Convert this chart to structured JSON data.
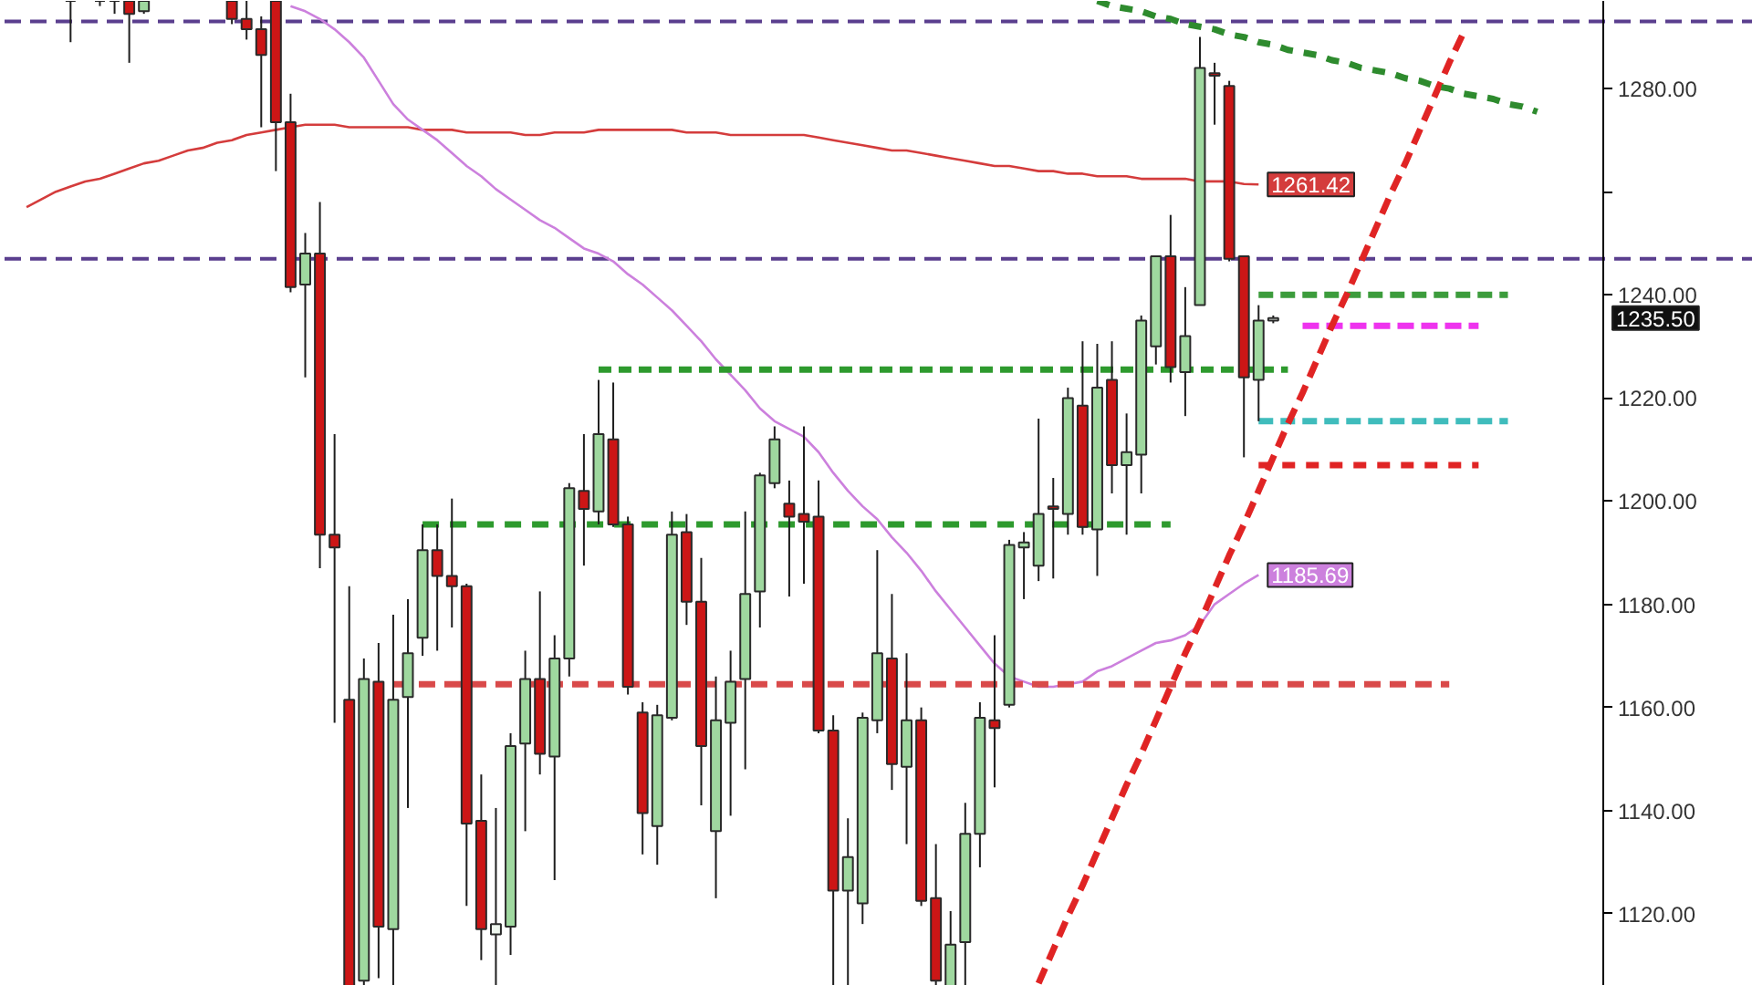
{
  "chart_data": {
    "type": "candlestick",
    "categories": [
      null,
      null,
      null,
      null,
      null,
      null,
      null,
      null,
      null,
      null,
      null,
      null,
      null,
      null,
      null,
      null,
      null,
      null,
      null,
      null,
      null,
      null,
      null,
      null,
      null,
      null,
      null,
      null,
      null,
      null,
      null,
      null,
      null,
      null,
      null,
      null,
      null,
      null,
      null,
      null,
      null,
      null,
      null,
      null,
      null,
      null,
      null,
      null,
      null,
      null,
      null,
      null,
      null,
      null,
      null,
      null,
      null,
      null,
      null,
      null,
      null,
      null,
      null,
      null,
      null,
      null,
      null,
      null,
      null,
      null,
      null,
      null,
      null,
      null,
      null,
      null,
      null,
      null,
      null,
      null,
      null,
      null,
      null,
      null,
      null,
      null,
      null,
      null,
      null,
      null,
      null,
      null,
      null,
      null,
      null,
      null,
      null,
      null,
      null,
      null,
      null,
      null,
      null,
      null,
      null,
      null,
      null,
      null,
      null
    ],
    "ohlc": [
      null,
      null,
      null,
      null,
      [
        1297,
        1297,
        1289,
        1297
      ],
      null,
      [
        1297,
        1297,
        1296,
        1297
      ],
      [
        1297,
        1297,
        1294.5,
        1297
      ],
      [
        1297,
        1297,
        1285,
        1294.5
      ],
      [
        1295,
        1297,
        1294.5,
        1297
      ],
      null,
      null,
      null,
      null,
      null,
      [
        1297,
        1297,
        1292.5,
        1293.5
      ],
      [
        1293.5,
        1297,
        1289.5,
        1291.5
      ],
      [
        1291.5,
        1294,
        1272.5,
        1286.5
      ],
      [
        1297,
        1297,
        1264,
        1273.5
      ],
      [
        1273.5,
        1279,
        1240.5,
        1241.5
      ],
      [
        1242,
        1252,
        1224,
        1248
      ],
      [
        1248,
        1258,
        1187,
        1193.5
      ],
      [
        1193.5,
        1213,
        1157,
        1191
      ],
      [
        1161.5,
        1183.5,
        1106,
        1106
      ],
      [
        1107,
        1169.5,
        1106,
        1165.5
      ],
      [
        1165,
        1172.5,
        1107.5,
        1117.5
      ],
      [
        1117,
        1178,
        1106,
        1161.5
      ],
      [
        1162,
        1181,
        1140.5,
        1170.5
      ],
      [
        1173.5,
        1195.5,
        1170,
        1190.5
      ],
      [
        1190.5,
        1195.5,
        1171,
        1185.5
      ],
      [
        1185.5,
        1200.5,
        1175.5,
        1183.5
      ],
      [
        1183.5,
        1184,
        1121.5,
        1137.5
      ],
      [
        1138,
        1147,
        1111,
        1117
      ],
      [
        1116,
        1140.5,
        1106,
        1118
      ],
      [
        1117.5,
        1155,
        1112,
        1152.5
      ],
      [
        1153,
        1171,
        1136,
        1165.5
      ],
      [
        1165.5,
        1182.5,
        1147,
        1151
      ],
      [
        1150.5,
        1174,
        1126.5,
        1169.5
      ],
      [
        1169.5,
        1203.5,
        1166,
        1202.5
      ],
      [
        1202,
        1213,
        1187.5,
        1198.5
      ],
      [
        1198,
        1223.5,
        1195.5,
        1213
      ],
      [
        1212,
        1223,
        1195,
        1195.5
      ],
      [
        1195.5,
        1197,
        1162.5,
        1164
      ],
      [
        1159,
        1161,
        1131.5,
        1139.5
      ],
      [
        1137,
        1160.5,
        1129.5,
        1158.5
      ],
      [
        1158,
        1198,
        1157.5,
        1193.5
      ],
      [
        1194,
        1197.5,
        1176,
        1180.5
      ],
      [
        1180.5,
        1189,
        1141,
        1152.5
      ],
      [
        1136,
        1166,
        1123,
        1157.5
      ],
      [
        1157,
        1171,
        1139,
        1165
      ],
      [
        1165.5,
        1198,
        1148,
        1182
      ],
      [
        1182.5,
        1205.5,
        1175.5,
        1205
      ],
      [
        1203.5,
        1214.5,
        1202.5,
        1212
      ],
      [
        1199.5,
        1204,
        1181.5,
        1197
      ],
      [
        1197.5,
        1214.5,
        1184,
        1196
      ],
      [
        1197,
        1204,
        1155,
        1155.5
      ],
      [
        1155.5,
        1158.5,
        1106,
        1124.5
      ],
      [
        1124.5,
        1138.5,
        1106,
        1131
      ],
      [
        1122,
        1159,
        1118,
        1158
      ],
      [
        1157.5,
        1190.5,
        1155,
        1170.5
      ],
      [
        1169.5,
        1182,
        1144,
        1149
      ],
      [
        1148.5,
        1170.5,
        1133.5,
        1157.5
      ],
      [
        1157.5,
        1160,
        1121.5,
        1122.5
      ],
      [
        1123,
        1133.5,
        1106,
        1107
      ],
      [
        1106,
        1120.5,
        1106,
        1114
      ],
      [
        1114.5,
        1141.5,
        1106,
        1135.5
      ],
      [
        1135.5,
        1161,
        1129,
        1158
      ],
      [
        1157.5,
        1174,
        1144.5,
        1156
      ],
      [
        1160.5,
        1192.5,
        1160,
        1191.5
      ],
      [
        1191,
        1194,
        1181,
        1192
      ],
      [
        1187.5,
        1216,
        1184.5,
        1197.5
      ],
      [
        1199,
        1204.5,
        1185,
        1198.5
      ],
      [
        1197.5,
        1222,
        1193.5,
        1220
      ],
      [
        1218.5,
        1231,
        1193.5,
        1195
      ],
      [
        1194.5,
        1230.5,
        1185.5,
        1222
      ],
      [
        1223.5,
        1231,
        1201.5,
        1207
      ],
      [
        1207,
        1217,
        1193.5,
        1209.5
      ],
      [
        1209,
        1236,
        1201.5,
        1235
      ],
      [
        1230,
        1247.5,
        1226.5,
        1247.5
      ],
      [
        1247.5,
        1255.5,
        1223,
        1226
      ],
      [
        1225,
        1241.5,
        1216.5,
        1232
      ],
      [
        1238,
        1290,
        1238,
        1284
      ],
      [
        1283,
        1285,
        1273,
        1282.5
      ],
      [
        1280.5,
        1281.5,
        1246.5,
        1247
      ],
      [
        1247.5,
        1247.5,
        1208.5,
        1224
      ],
      [
        1223.5,
        1238,
        1215.5,
        1235
      ],
      [
        1235,
        1236,
        1234.5,
        1235.5
      ],
      null,
      null,
      null,
      null,
      null,
      null,
      null,
      null,
      null,
      null,
      null,
      null,
      null,
      null,
      null,
      null,
      null,
      null,
      null,
      null,
      null,
      null
    ],
    "colors": [
      null,
      null,
      null,
      null,
      "#2a2a2a",
      null,
      "#2a2a2a",
      "#2a2a2a",
      "#cc1616",
      "#9fd89f",
      null,
      null,
      null,
      null,
      null,
      "#cc1616",
      "#cc1616",
      "#cc1616",
      "#cc1616",
      "#cc1616",
      "#9fd89f",
      "#cc1616",
      "#cc1616",
      "#cc1616",
      "#9fd89f",
      "#cc1616",
      "#9fd89f",
      "#9fd89f",
      "#9fd89f",
      "#cc1616",
      "#cc1616",
      "#cc1616",
      "#cc1616",
      "#eef7ee",
      "#9fd89f",
      "#9fd89f",
      "#cc1616",
      "#9fd89f",
      "#9fd89f",
      "#cc1616",
      "#9fd89f",
      "#cc1616",
      "#cc1616",
      "#cc1616",
      "#9fd89f",
      "#9fd89f",
      "#cc1616",
      "#cc1616",
      "#9fd89f",
      "#9fd89f",
      "#9fd89f",
      "#9fd89f",
      "#9fd89f",
      "#cc1616",
      "#cc1616",
      "#cc1616",
      "#cc1616",
      "#9fd89f",
      "#9fd89f",
      "#9fd89f",
      "#cc1616",
      "#9fd89f",
      "#cc1616",
      "#cc1616",
      "#9fd89f",
      "#9fd89f",
      "#9fd89f",
      "#cc1616",
      "#9fd89f",
      "#9fd89f",
      "#9fd89f",
      "#cc1616",
      "#9fd89f",
      "#cc1616",
      "#9fd89f",
      "#cc1616",
      "#9fd89f",
      "#9fd89f",
      "#9fd89f",
      "#cc1616",
      "#9fd89f",
      "#9fd89f",
      "#cc1616",
      "#cc1616",
      "#cc1616",
      "#9fd89f",
      "#eef7ee",
      null,
      null,
      null,
      null,
      null,
      null,
      null,
      null,
      null,
      null,
      null,
      null,
      null,
      null,
      null,
      null,
      null,
      null,
      null,
      null,
      null,
      null
    ],
    "ylim": [
      1106,
      1297
    ],
    "yticks": [
      {
        "value": 1120,
        "label": "1120.00"
      },
      {
        "value": 1140,
        "label": "1140.00"
      },
      {
        "value": 1160,
        "label": "1160.00"
      },
      {
        "value": 1180,
        "label": "1180.00"
      },
      {
        "value": 1200,
        "label": "1200.00"
      },
      {
        "value": 1220,
        "label": "1220.00"
      },
      {
        "value": 1240,
        "label": "1240.00"
      },
      {
        "value": 1260,
        "label": null
      },
      {
        "value": 1280,
        "label": "1280.00"
      }
    ],
    "tick_labels": "y",
    "ref_lines": [
      {
        "axis": "y",
        "value": 1293,
        "color": "#5a3e8e",
        "line_style": "dashed"
      },
      {
        "axis": "y",
        "value": 1247,
        "color": "#5a3e8e",
        "line_style": "dashed"
      }
    ],
    "annotations": [
      "1235.50"
    ],
    "series": [
      {
        "type": "line",
        "color": "#d43c3c",
        "values": [
          null,
          1257,
          1258.5,
          1260,
          1261,
          1262,
          1262.5,
          1263.5,
          1264.5,
          1265.5,
          1266,
          1267,
          1268,
          1268.5,
          1269.5,
          1270,
          1271,
          1271.5,
          1272,
          1272.5,
          1273,
          1273,
          1273,
          1272.5,
          1272.5,
          1272.5,
          1272.5,
          1272.5,
          1272,
          1272,
          1272,
          1271.5,
          1271.5,
          1271.5,
          1271.5,
          1271,
          1271,
          1271.5,
          1271.5,
          1271.5,
          1272,
          1272,
          1272,
          1272,
          1272,
          1272,
          1271.5,
          1271.5,
          1271.5,
          1271,
          1271,
          1271,
          1271,
          1271,
          1271,
          1270.5,
          1270,
          1269.5,
          1269,
          1268.5,
          1268,
          1268,
          1267.5,
          1267,
          1266.5,
          1266,
          1265.5,
          1265,
          1265,
          1264.5,
          1264,
          1264,
          1263.5,
          1263.5,
          1263,
          1263,
          1263,
          1262.5,
          1262.5,
          1262.5,
          1262.5,
          1262,
          1262,
          1262,
          1261.5,
          1261.42,
          null,
          null,
          null,
          null,
          null,
          null,
          null,
          null,
          null,
          null,
          null,
          null,
          null,
          null,
          null,
          null,
          null,
          null,
          null,
          null,
          null,
          null,
          null
        ],
        "value_labels": [
          null,
          null,
          null,
          null,
          null,
          null,
          null,
          null,
          null,
          null,
          null,
          null,
          null,
          null,
          null,
          null,
          null,
          null,
          null,
          null,
          null,
          null,
          null,
          null,
          null,
          null,
          null,
          null,
          null,
          null,
          null,
          null,
          null,
          null,
          null,
          null,
          null,
          null,
          null,
          null,
          null,
          null,
          null,
          null,
          null,
          null,
          null,
          null,
          null,
          null,
          null,
          null,
          null,
          null,
          null,
          null,
          null,
          null,
          null,
          null,
          null,
          null,
          null,
          null,
          null,
          null,
          null,
          null,
          null,
          null,
          null,
          null,
          null,
          null,
          null,
          null,
          null,
          null,
          null,
          null,
          null,
          null,
          null,
          null,
          null,
          "1261.42",
          null,
          null,
          null,
          null,
          null,
          null,
          null,
          null,
          null,
          null,
          null,
          null,
          null,
          null,
          null,
          null,
          null,
          null,
          null,
          null,
          null,
          null,
          null
        ]
      },
      {
        "type": "line",
        "color": "#cc80dd",
        "values": [
          null,
          null,
          null,
          null,
          null,
          null,
          null,
          null,
          null,
          null,
          null,
          null,
          null,
          null,
          null,
          null,
          null,
          null,
          null,
          1296,
          1295,
          1293.5,
          1291.5,
          1289,
          1286,
          1281.5,
          1277,
          1274,
          1272,
          1270,
          1267.5,
          1265,
          1263,
          1260.5,
          1258.5,
          1256.5,
          1254.5,
          1253,
          1251,
          1249,
          1248,
          1246.5,
          1244,
          1242,
          1239.5,
          1237,
          1234,
          1231,
          1227.5,
          1224.5,
          1221.5,
          1218,
          1215.5,
          1214,
          1212.5,
          1209.5,
          1205.5,
          1202,
          1199,
          1196.5,
          1193,
          1190,
          1186.5,
          1182.5,
          1179,
          1175.5,
          1172,
          1168.5,
          1166,
          1165,
          1164,
          1164,
          1164.5,
          1165,
          1167,
          1168,
          1169.5,
          1171,
          1172.5,
          1173,
          1174,
          1176,
          1180,
          1182,
          1184,
          1185.69,
          null,
          null,
          null,
          null,
          null,
          null,
          null,
          null,
          null,
          null,
          null,
          null,
          null,
          null,
          null,
          null,
          null,
          null,
          null,
          null,
          null,
          null,
          null
        ],
        "value_labels": [
          null,
          null,
          null,
          null,
          null,
          null,
          null,
          null,
          null,
          null,
          null,
          null,
          null,
          null,
          null,
          null,
          null,
          null,
          null,
          null,
          null,
          null,
          null,
          null,
          null,
          null,
          null,
          null,
          null,
          null,
          null,
          null,
          null,
          null,
          null,
          null,
          null,
          null,
          null,
          null,
          null,
          null,
          null,
          null,
          null,
          null,
          null,
          null,
          null,
          null,
          null,
          null,
          null,
          null,
          null,
          null,
          null,
          null,
          null,
          null,
          null,
          null,
          null,
          null,
          null,
          null,
          null,
          null,
          null,
          null,
          null,
          null,
          null,
          null,
          null,
          null,
          null,
          null,
          null,
          null,
          null,
          null,
          null,
          null,
          null,
          "1185.69",
          null,
          null,
          null,
          null,
          null,
          null,
          null,
          null,
          null,
          null,
          null,
          null,
          null,
          null,
          null,
          null,
          null,
          null,
          null,
          null,
          null,
          null,
          null
        ]
      },
      {
        "type": "line",
        "color": "#d94a4a",
        "line_style": "dashed",
        "values": [
          null,
          null,
          null,
          null,
          null,
          null,
          null,
          null,
          null,
          null,
          null,
          null,
          null,
          null,
          null,
          null,
          null,
          null,
          null,
          null,
          null,
          null,
          null,
          null,
          null,
          null,
          1164.5,
          1164.5,
          1164.5,
          1164.5,
          1164.5,
          1164.5,
          1164.5,
          1164.5,
          1164.5,
          1164.5,
          1164.5,
          1164.5,
          1164.5,
          1164.5,
          1164.5,
          1164.5,
          1164.5,
          1164.5,
          1164.5,
          1164.5,
          1164.5,
          1164.5,
          1164.5,
          1164.5,
          1164.5,
          1164.5,
          1164.5,
          1164.5,
          1164.5,
          1164.5,
          1164.5,
          1164.5,
          1164.5,
          1164.5,
          1164.5,
          1164.5,
          1164.5,
          1164.5,
          1164.5,
          1164.5,
          1164.5,
          1164.5,
          1164.5,
          1164.5,
          1164.5,
          1164.5,
          1164.5,
          1164.5,
          1164.5,
          1164.5,
          1164.5,
          1164.5,
          1164.5,
          1164.5,
          1164.5,
          1164.5,
          1164.5,
          1164.5,
          1164.5,
          1164.5,
          1164.5,
          1164.5,
          1164.5,
          1164.5,
          1164.5,
          1164.5,
          1164.5,
          1164.5,
          1164.5,
          1164.5,
          1164.5,
          1164.5,
          1164.5,
          null,
          null,
          null,
          null,
          null,
          null,
          null,
          null,
          null,
          null
        ]
      },
      {
        "type": "line",
        "color": "#2e9a2e",
        "line_style": "dashed",
        "values": [
          null,
          null,
          null,
          null,
          null,
          null,
          null,
          null,
          null,
          null,
          null,
          null,
          null,
          null,
          null,
          null,
          null,
          null,
          null,
          null,
          null,
          null,
          null,
          null,
          null,
          null,
          null,
          null,
          1195.5,
          1195.5,
          1195.5,
          1195.5,
          1195.5,
          1195.5,
          1195.5,
          1195.5,
          1195.5,
          1195.5,
          1195.5,
          1195.5,
          1195.5,
          1195.5,
          1195.5,
          1195.5,
          1195.5,
          1195.5,
          1195.5,
          1195.5,
          1195.5,
          1195.5,
          1195.5,
          1195.5,
          1195.5,
          1195.5,
          1195.5,
          1195.5,
          1195.5,
          1195.5,
          1195.5,
          1195.5,
          1195.5,
          1195.5,
          1195.5,
          1195.5,
          1195.5,
          1195.5,
          1195.5,
          1195.5,
          1195.5,
          1195.5,
          1195.5,
          1195.5,
          1195.5,
          1195.5,
          1195.5,
          1195.5,
          1195.5,
          1195.5,
          1195.5,
          1195.5,
          null,
          null,
          null,
          null,
          null,
          null,
          null,
          null,
          null,
          null,
          null,
          null,
          null,
          null,
          null,
          null,
          null,
          null,
          null,
          null,
          null,
          null,
          null,
          null,
          null,
          null,
          null,
          null,
          null
        ]
      },
      {
        "type": "line",
        "color": "#2e9a2e",
        "line_style": "dashed",
        "values": [
          null,
          null,
          null,
          null,
          null,
          null,
          null,
          null,
          null,
          null,
          null,
          null,
          null,
          null,
          null,
          null,
          null,
          null,
          null,
          null,
          null,
          null,
          null,
          null,
          null,
          null,
          null,
          null,
          null,
          null,
          null,
          null,
          null,
          null,
          null,
          null,
          null,
          null,
          null,
          null,
          1225.5,
          1225.5,
          1225.5,
          1225.5,
          1225.5,
          1225.5,
          1225.5,
          1225.5,
          1225.5,
          1225.5,
          1225.5,
          1225.5,
          1225.5,
          1225.5,
          1225.5,
          1225.5,
          1225.5,
          1225.5,
          1225.5,
          1225.5,
          1225.5,
          1225.5,
          1225.5,
          1225.5,
          1225.5,
          1225.5,
          1225.5,
          1225.5,
          1225.5,
          1225.5,
          1225.5,
          1225.5,
          1225.5,
          1225.5,
          1225.5,
          1225.5,
          1225.5,
          1225.5,
          1225.5,
          1225.5,
          1225.5,
          1225.5,
          1225.5,
          1225.5,
          1225.5,
          1225.5,
          1225.5,
          1225.5,
          null,
          null,
          null,
          null,
          null,
          null,
          null,
          null,
          null,
          null,
          null,
          null,
          null,
          null,
          null,
          null,
          null,
          null,
          null,
          null,
          null
        ]
      },
      {
        "type": "line",
        "color": "#3c9c3c",
        "line_style": "dashed",
        "values": [
          null,
          null,
          null,
          null,
          null,
          null,
          null,
          null,
          null,
          null,
          null,
          null,
          null,
          null,
          null,
          null,
          null,
          null,
          null,
          null,
          null,
          null,
          null,
          null,
          null,
          null,
          null,
          null,
          null,
          null,
          null,
          null,
          null,
          null,
          null,
          null,
          null,
          null,
          null,
          null,
          null,
          null,
          null,
          null,
          null,
          null,
          null,
          null,
          null,
          null,
          null,
          null,
          null,
          null,
          null,
          null,
          null,
          null,
          null,
          null,
          null,
          null,
          null,
          null,
          null,
          null,
          null,
          null,
          null,
          null,
          null,
          null,
          null,
          null,
          null,
          null,
          null,
          null,
          null,
          null,
          null,
          null,
          null,
          null,
          null,
          1240,
          1240,
          1240,
          1240,
          1240,
          1240,
          1240,
          1240,
          1240,
          1240,
          1240,
          1240,
          1240,
          1240,
          1240,
          1240,
          1240,
          1240,
          null,
          null,
          null,
          null,
          null,
          null
        ]
      },
      {
        "type": "line",
        "color": "#ee33ee",
        "line_style": "dashed",
        "values": [
          null,
          null,
          null,
          null,
          null,
          null,
          null,
          null,
          null,
          null,
          null,
          null,
          null,
          null,
          null,
          null,
          null,
          null,
          null,
          null,
          null,
          null,
          null,
          null,
          null,
          null,
          null,
          null,
          null,
          null,
          null,
          null,
          null,
          null,
          null,
          null,
          null,
          null,
          null,
          null,
          null,
          null,
          null,
          null,
          null,
          null,
          null,
          null,
          null,
          null,
          null,
          null,
          null,
          null,
          null,
          null,
          null,
          null,
          null,
          null,
          null,
          null,
          null,
          null,
          null,
          null,
          null,
          null,
          null,
          null,
          null,
          null,
          null,
          null,
          null,
          null,
          null,
          null,
          null,
          null,
          null,
          null,
          null,
          null,
          null,
          null,
          null,
          null,
          1234,
          1234,
          1234,
          1234,
          1234,
          1234,
          1234,
          1234,
          1234,
          1234,
          1234,
          1234,
          1234,
          null,
          null,
          null,
          null,
          null,
          null,
          null,
          null
        ]
      },
      {
        "type": "line",
        "color": "#3fbcbc",
        "line_style": "dashed",
        "values": [
          null,
          null,
          null,
          null,
          null,
          null,
          null,
          null,
          null,
          null,
          null,
          null,
          null,
          null,
          null,
          null,
          null,
          null,
          null,
          null,
          null,
          null,
          null,
          null,
          null,
          null,
          null,
          null,
          null,
          null,
          null,
          null,
          null,
          null,
          null,
          null,
          null,
          null,
          null,
          null,
          null,
          null,
          null,
          null,
          null,
          null,
          null,
          null,
          null,
          null,
          null,
          null,
          null,
          null,
          null,
          null,
          null,
          null,
          null,
          null,
          null,
          null,
          null,
          null,
          null,
          null,
          null,
          null,
          null,
          null,
          null,
          null,
          null,
          null,
          null,
          null,
          null,
          null,
          null,
          null,
          null,
          null,
          null,
          null,
          null,
          1215.5,
          1215.5,
          1215.5,
          1215.5,
          1215.5,
          1215.5,
          1215.5,
          1215.5,
          1215.5,
          1215.5,
          1215.5,
          1215.5,
          1215.5,
          1215.5,
          1215.5,
          1215.5,
          1215.5,
          1215.5,
          null,
          null,
          null,
          null,
          null,
          null
        ]
      },
      {
        "type": "line",
        "color": "#e02424",
        "line_style": "dashed",
        "values": [
          null,
          null,
          null,
          null,
          null,
          null,
          null,
          null,
          null,
          null,
          null,
          null,
          null,
          null,
          null,
          null,
          null,
          null,
          null,
          null,
          null,
          null,
          null,
          null,
          null,
          null,
          null,
          null,
          null,
          null,
          null,
          null,
          null,
          null,
          null,
          null,
          null,
          null,
          null,
          null,
          null,
          null,
          null,
          null,
          null,
          null,
          null,
          null,
          null,
          null,
          null,
          null,
          null,
          null,
          null,
          null,
          null,
          null,
          null,
          null,
          null,
          null,
          null,
          null,
          null,
          null,
          null,
          null,
          null,
          null,
          null,
          null,
          null,
          null,
          null,
          null,
          null,
          null,
          null,
          null,
          null,
          null,
          null,
          null,
          null,
          1207,
          1207,
          1207,
          1207,
          1207,
          1207,
          1207,
          1207,
          1207,
          1207,
          1207,
          1207,
          1207,
          1207,
          1207,
          1207,
          null,
          null,
          null,
          null,
          null,
          null,
          null,
          null
        ]
      },
      {
        "type": "line",
        "color": "#e02424",
        "line_style": "dashed",
        "values": [
          null,
          null,
          null,
          null,
          null,
          null,
          null,
          null,
          null,
          null,
          null,
          null,
          null,
          null,
          null,
          null,
          null,
          null,
          null,
          null,
          null,
          null,
          null,
          null,
          null,
          null,
          null,
          null,
          null,
          null,
          null,
          null,
          null,
          null,
          null,
          null,
          null,
          null,
          null,
          null,
          null,
          null,
          null,
          null,
          null,
          null,
          null,
          null,
          null,
          null,
          null,
          null,
          null,
          null,
          null,
          null,
          null,
          null,
          null,
          null,
          null,
          null,
          null,
          null,
          null,
          null,
          null,
          null,
          null,
          null,
          1106.5,
          1113,
          1119.5,
          1125.5,
          1132,
          1138.5,
          1145,
          1151,
          1157.5,
          1164,
          1170.5,
          1176.5,
          1183,
          1189.5,
          1195.5,
          1202,
          1208.5,
          1215,
          1221,
          1227.5,
          1234,
          1240,
          1246.5,
          1253,
          1259.5,
          1265.5,
          1272,
          1278.5,
          1285,
          1291,
          null,
          null,
          null,
          null,
          null,
          null,
          null,
          null,
          null
        ]
      },
      {
        "type": "line",
        "color": "#2e8b2e",
        "line_style": "dashed",
        "values": [
          null,
          null,
          null,
          null,
          null,
          null,
          null,
          null,
          null,
          null,
          null,
          null,
          null,
          null,
          null,
          null,
          null,
          null,
          null,
          null,
          null,
          null,
          null,
          null,
          null,
          null,
          null,
          null,
          null,
          null,
          null,
          null,
          null,
          null,
          null,
          null,
          null,
          null,
          null,
          null,
          null,
          null,
          null,
          null,
          null,
          null,
          null,
          null,
          null,
          null,
          null,
          null,
          null,
          null,
          null,
          null,
          null,
          null,
          null,
          null,
          null,
          null,
          null,
          null,
          null,
          null,
          null,
          null,
          null,
          null,
          null,
          null,
          null,
          null,
          1297,
          1296,
          1295.5,
          1295,
          1294,
          1293.5,
          1292.5,
          1292,
          1291.5,
          1290.5,
          1290,
          1289,
          1288.5,
          1287.5,
          1287,
          1286.5,
          1285.5,
          1285,
          1284,
          1283.5,
          1283,
          1282,
          1281.5,
          1280.5,
          1280,
          1279,
          1278.5,
          1278,
          1277,
          1276.5,
          1275.5,
          null,
          null,
          null,
          null
        ]
      }
    ]
  }
}
